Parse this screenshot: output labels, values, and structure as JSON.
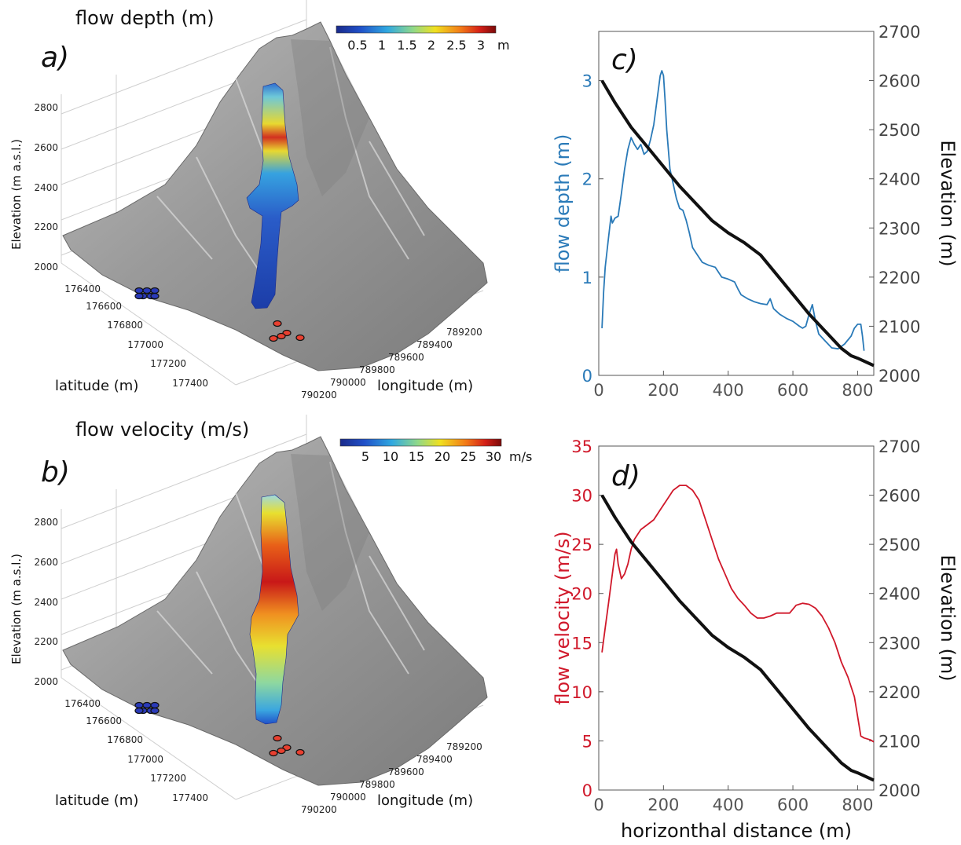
{
  "panel_labels": [
    "a)",
    "b)",
    "c)",
    "d)"
  ],
  "map3d": [
    {
      "title": "flow depth (m)",
      "colorbar": {
        "ticks": [
          "0.5",
          "1",
          "1.5",
          "2",
          "2.5",
          "3"
        ],
        "unit": "m",
        "min": 0,
        "max": 3.2
      },
      "zlabel": "Elevation (m a.s.l.)",
      "xlabel": "latitude (m)",
      "ylabel": "longitude (m)",
      "elev_ticks": [
        "2000",
        "2200",
        "2400",
        "2600",
        "2800"
      ],
      "lat_ticks": [
        "176400",
        "176600",
        "176800",
        "177000",
        "177200",
        "177400"
      ],
      "lon_ticks": [
        "789200",
        "789400",
        "789600",
        "789800",
        "790000",
        "790200"
      ],
      "field": "depth"
    },
    {
      "title": "flow velocity (m/s)",
      "colorbar": {
        "ticks": [
          "5",
          "10",
          "15",
          "20",
          "25",
          "30"
        ],
        "unit": "m/s",
        "min": 0,
        "max": 32
      },
      "zlabel": "Elevation (m a.s.l.)",
      "xlabel": "latitude (m)",
      "ylabel": "longitude (m)",
      "elev_ticks": [
        "2000",
        "2200",
        "2400",
        "2600",
        "2800"
      ],
      "lat_ticks": [
        "176400",
        "176600",
        "176800",
        "177000",
        "177200",
        "177400"
      ],
      "lon_ticks": [
        "789200",
        "789400",
        "789600",
        "789800",
        "790000",
        "790200"
      ],
      "field": "velocity"
    }
  ],
  "chart_data": [
    {
      "type": "line",
      "panel": "c)",
      "xlim": [
        0,
        850
      ],
      "x_ticks": [
        "0",
        "200",
        "400",
        "600",
        "800"
      ],
      "y_left": {
        "label": "flow depth (m)",
        "lim": [
          0,
          3.5
        ],
        "ticks": [
          "0",
          "1",
          "2",
          "3"
        ],
        "color": "#2a7ab8"
      },
      "y_right": {
        "label": "Elevation (m)",
        "lim": [
          2000,
          2700
        ],
        "ticks": [
          "2000",
          "2100",
          "2200",
          "2300",
          "2400",
          "2500",
          "2600",
          "2700"
        ],
        "color": "#111111"
      },
      "series": [
        {
          "axis": "left",
          "color": "#2a7ab8",
          "x": [
            10,
            15,
            20,
            30,
            38,
            42,
            50,
            60,
            70,
            80,
            90,
            100,
            110,
            120,
            130,
            140,
            150,
            160,
            170,
            180,
            190,
            195,
            200,
            205,
            210,
            220,
            230,
            240,
            250,
            260,
            270,
            280,
            290,
            300,
            320,
            340,
            360,
            380,
            400,
            420,
            430,
            440,
            460,
            480,
            500,
            520,
            530,
            540,
            560,
            580,
            600,
            620,
            630,
            640,
            650,
            660,
            670,
            680,
            700,
            720,
            740,
            760,
            780,
            790,
            800,
            810,
            815,
            820
          ],
          "y": [
            0.48,
            0.85,
            1.1,
            1.4,
            1.62,
            1.55,
            1.6,
            1.62,
            1.85,
            2.1,
            2.3,
            2.42,
            2.35,
            2.3,
            2.35,
            2.25,
            2.28,
            2.4,
            2.55,
            2.8,
            3.05,
            3.1,
            3.05,
            2.8,
            2.5,
            2.1,
            1.95,
            1.8,
            1.7,
            1.68,
            1.58,
            1.45,
            1.3,
            1.25,
            1.15,
            1.12,
            1.1,
            1.0,
            0.98,
            0.95,
            0.88,
            0.82,
            0.78,
            0.75,
            0.73,
            0.72,
            0.78,
            0.68,
            0.62,
            0.58,
            0.55,
            0.5,
            0.48,
            0.5,
            0.62,
            0.72,
            0.55,
            0.42,
            0.35,
            0.28,
            0.27,
            0.32,
            0.4,
            0.48,
            0.52,
            0.52,
            0.4,
            0.25
          ]
        },
        {
          "axis": "right",
          "color": "#111111",
          "x": [
            10,
            50,
            100,
            150,
            200,
            250,
            300,
            350,
            400,
            450,
            500,
            550,
            600,
            650,
            700,
            750,
            780,
            800,
            850
          ],
          "y": [
            2600,
            2555,
            2505,
            2465,
            2425,
            2385,
            2350,
            2315,
            2290,
            2270,
            2245,
            2205,
            2165,
            2125,
            2090,
            2055,
            2040,
            2035,
            2020
          ]
        }
      ]
    },
    {
      "type": "line",
      "panel": "d)",
      "xlim": [
        0,
        850
      ],
      "xlabel": "horizonthal distance (m)",
      "x_ticks": [
        "0",
        "200",
        "400",
        "600",
        "800"
      ],
      "y_left": {
        "label": "flow velocity (m/s)",
        "lim": [
          0,
          35
        ],
        "ticks": [
          "0",
          "5",
          "10",
          "15",
          "20",
          "25",
          "30",
          "35"
        ],
        "color": "#d0182a"
      },
      "y_right": {
        "label": "Elevation (m)",
        "lim": [
          2000,
          2700
        ],
        "ticks": [
          "2000",
          "2100",
          "2200",
          "2300",
          "2400",
          "2500",
          "2600",
          "2700"
        ],
        "color": "#111111"
      },
      "series": [
        {
          "axis": "left",
          "color": "#d0182a",
          "x": [
            10,
            20,
            30,
            40,
            50,
            55,
            60,
            70,
            80,
            90,
            100,
            110,
            120,
            130,
            150,
            170,
            190,
            210,
            230,
            250,
            270,
            290,
            310,
            330,
            350,
            370,
            390,
            410,
            430,
            450,
            470,
            490,
            510,
            530,
            550,
            570,
            590,
            610,
            630,
            650,
            670,
            690,
            710,
            730,
            750,
            770,
            790,
            800,
            810,
            820,
            840,
            850
          ],
          "y": [
            14,
            16.5,
            19,
            21.5,
            24,
            24.5,
            23,
            21.5,
            22,
            23,
            24.5,
            25.5,
            26,
            26.5,
            27,
            27.5,
            28.5,
            29.5,
            30.5,
            31,
            31,
            30.5,
            29.5,
            27.5,
            25.5,
            23.5,
            22,
            20.5,
            19.5,
            18.8,
            18,
            17.5,
            17.5,
            17.7,
            18,
            18,
            18,
            18.8,
            19,
            18.9,
            18.5,
            17.7,
            16.5,
            15,
            13,
            11.5,
            9.5,
            7.5,
            5.5,
            5.3,
            5.1,
            4.9
          ]
        },
        {
          "axis": "right",
          "color": "#111111",
          "x": [
            10,
            50,
            100,
            150,
            200,
            250,
            300,
            350,
            400,
            450,
            500,
            550,
            600,
            650,
            700,
            750,
            780,
            800,
            850
          ],
          "y": [
            2600,
            2555,
            2505,
            2465,
            2425,
            2385,
            2350,
            2315,
            2290,
            2270,
            2245,
            2205,
            2165,
            2125,
            2090,
            2055,
            2040,
            2035,
            2020
          ]
        }
      ]
    }
  ]
}
